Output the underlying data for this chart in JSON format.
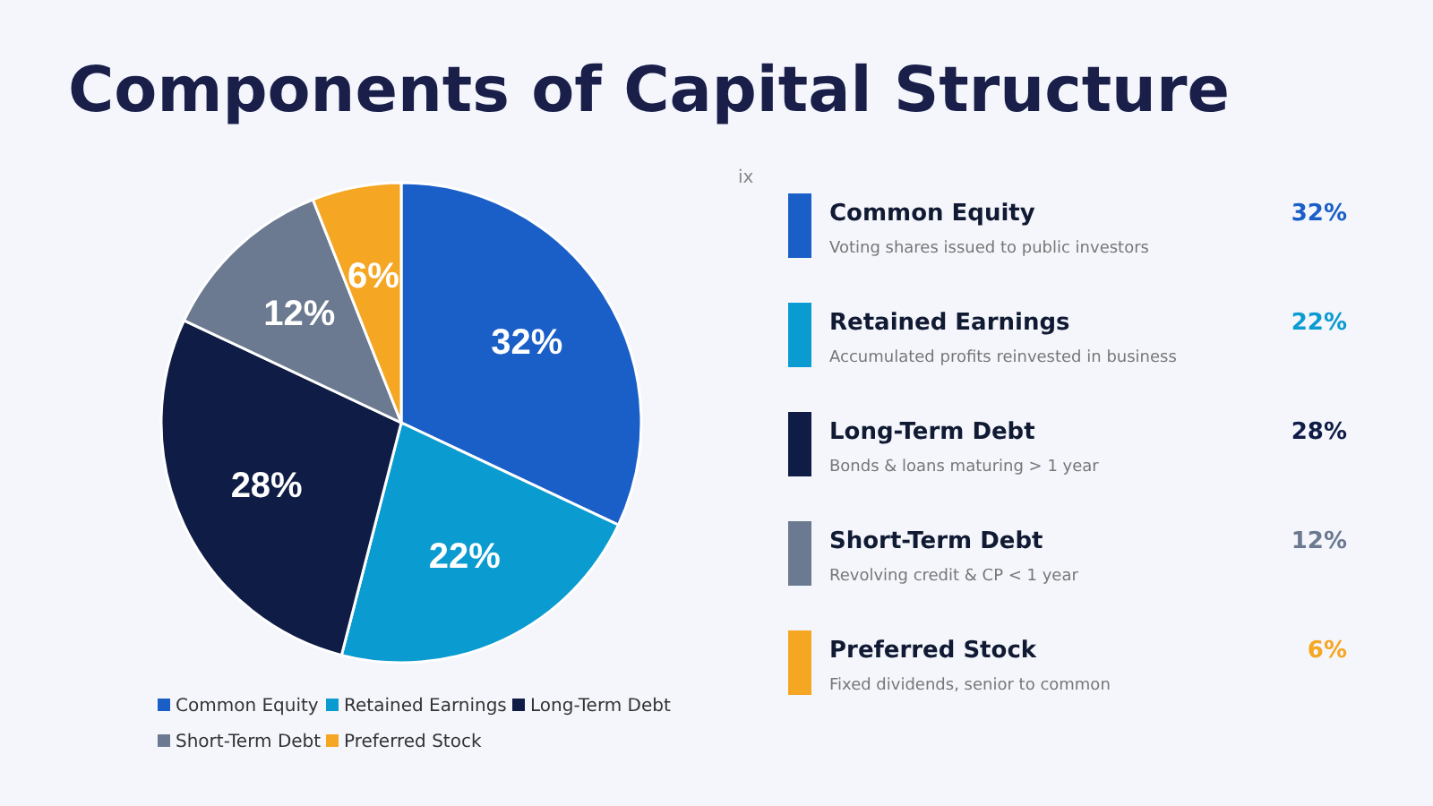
{
  "chart_data": {
    "type": "pie",
    "title": "Components of Capital Structure",
    "categories": [
      "Common Equity",
      "Retained Earnings",
      "Long-Term Debt",
      "Short-Term Debt",
      "Preferred Stock"
    ],
    "values": [
      32,
      22,
      28,
      12,
      6
    ],
    "value_labels": [
      "32%",
      "22%",
      "28%",
      "12%",
      "6%"
    ],
    "colors": [
      "#1a5fc8",
      "#0a9bd0",
      "#0f1c45",
      "#6b7a90",
      "#f5a623"
    ],
    "legend": "bottom",
    "annotations": [
      "ix",
      "Voting shares issued to public investors",
      "Accumulated profits reinvested in business",
      "Bonds & loans maturing > 1 year",
      "Revolving credit & CP < 1 year",
      "Fixed dividends, senior to common",
      "32%",
      "22%",
      "28%",
      "12%",
      "6%"
    ]
  }
}
